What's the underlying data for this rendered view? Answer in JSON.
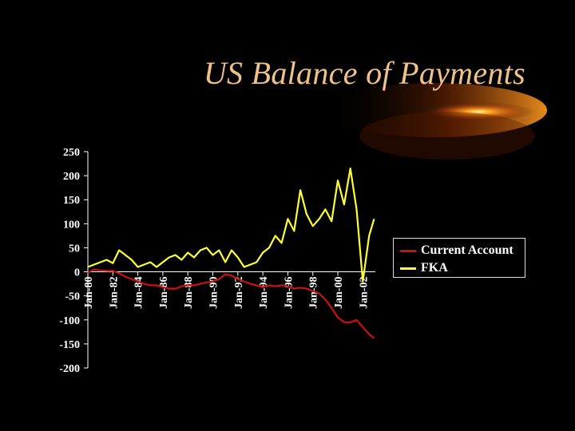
{
  "slide": {
    "title": "US Balance of Payments"
  },
  "colors": {
    "background": "#000000",
    "title": "#F0C28A",
    "current_account": "#CC1111",
    "fka": "#FFFF33",
    "axis": "#FFFFFF"
  },
  "chart_data": {
    "type": "line",
    "title": "",
    "xlabel": "",
    "ylabel": "",
    "ylim": [
      -200,
      250
    ],
    "yticks": [
      250,
      200,
      150,
      100,
      50,
      0,
      -50,
      -100,
      -150,
      -200
    ],
    "xtick_labels": [
      "Jan-80",
      "Jan-82",
      "Jan-84",
      "Jan-86",
      "Jan-88",
      "Jan-90",
      "Jan-92",
      "Jan-94",
      "Jan-96",
      "Jan-98",
      "Jan-00",
      "Jan-02"
    ],
    "x_years": [
      1980,
      1980.5,
      1981,
      1981.5,
      1982,
      1982.5,
      1983,
      1983.5,
      1984,
      1984.5,
      1985,
      1985.5,
      1986,
      1986.5,
      1987,
      1987.5,
      1988,
      1988.5,
      1989,
      1989.5,
      1990,
      1990.5,
      1991,
      1991.5,
      1992,
      1992.5,
      1993,
      1993.5,
      1994,
      1994.5,
      1995,
      1995.5,
      1996,
      1996.5,
      1997,
      1997.5,
      1998,
      1998.5,
      1999,
      1999.5,
      2000,
      2000.5,
      2001,
      2001.5,
      2002,
      2002.5,
      2002.9
    ],
    "legend_position": "right",
    "grid": false,
    "series": [
      {
        "name": "Current Account",
        "values": [
          -2,
          5,
          3,
          2,
          2,
          -3,
          -10,
          -15,
          -20,
          -25,
          -28,
          -28,
          -32,
          -35,
          -35,
          -30,
          -28,
          -28,
          -25,
          -22,
          -20,
          -15,
          -5,
          -8,
          -15,
          -20,
          -25,
          -28,
          -32,
          -28,
          -30,
          -28,
          -30,
          -35,
          -33,
          -35,
          -40,
          -45,
          -58,
          -75,
          -95,
          -105,
          -105,
          -100,
          -115,
          -130,
          -138
        ]
      },
      {
        "name": "FKA",
        "values": [
          10,
          15,
          20,
          25,
          18,
          45,
          35,
          25,
          10,
          15,
          20,
          10,
          20,
          30,
          35,
          25,
          40,
          30,
          45,
          50,
          35,
          45,
          20,
          45,
          30,
          10,
          15,
          20,
          40,
          50,
          75,
          60,
          110,
          85,
          170,
          120,
          95,
          110,
          130,
          105,
          190,
          140,
          215,
          130,
          -20,
          75,
          110
        ]
      }
    ]
  }
}
